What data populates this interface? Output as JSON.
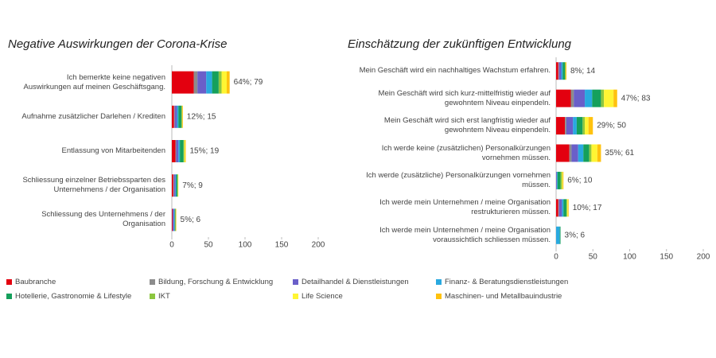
{
  "chart_data": [
    {
      "type": "bar",
      "orientation": "horizontal",
      "title": "Negative Auswirkungen der Corona-Krise",
      "categories": [
        "Ich bemerkte keine negativen\nAuswirkungen auf meinen Geschäftsgang.",
        "Aufnahme zusätzlicher Darlehen / Krediten",
        "Entlassung von Mitarbeitenden",
        "Schliessung einzelner Betriebssparten des\nUnternehmens / der Organisation",
        "Schliessung des Unternehmens / der\nOrganisation"
      ],
      "series": [
        {
          "values": [
            30,
            3,
            5,
            2,
            1
          ]
        },
        {
          "values": [
            5,
            1,
            1,
            1,
            0
          ]
        },
        {
          "values": [
            12,
            3,
            3,
            2,
            2
          ]
        },
        {
          "values": [
            8,
            2,
            2,
            1,
            1
          ]
        },
        {
          "values": [
            9,
            4,
            5,
            2,
            1
          ]
        },
        {
          "values": [
            4,
            1,
            1,
            0,
            0
          ]
        },
        {
          "values": [
            7,
            0,
            1,
            1,
            0
          ]
        },
        {
          "values": [
            4,
            1,
            1,
            0,
            1
          ]
        }
      ],
      "totals": {
        "values": [
          79,
          15,
          19,
          9,
          6
        ],
        "value_labels": [
          "64%; 79",
          "12%; 15",
          "15%; 19",
          "7%; 9",
          "5%; 6"
        ]
      },
      "xlim": [
        0,
        200
      ],
      "xticks": [
        0,
        50,
        100,
        150,
        200
      ]
    },
    {
      "type": "bar",
      "orientation": "horizontal",
      "title": "Einschätzung der zukünftigen Entwicklung",
      "categories": [
        "Mein Geschäft wird ein nachhaltiges Wachstum erfahren.",
        "Mein Geschäft wird sich kurz-mittelfristig wieder auf\ngewohntem Niveau einpendeln.",
        "Mein Geschäft wird sich erst langfristig wieder auf\ngewohntem Niveau einpendeln.",
        "Ich werde keine (zusätzlichen) Personalkürzungen\nvornehmen müssen.",
        "Ich werde (zusätzliche) Personalkürzungen vornehmen\nmüssen.",
        "Ich werde mein Unternehmen / meine Organisation\nrestrukturieren müssen.",
        "Ich werde mein Unternehmen / meine Organisation\nvoraussichtlich schliessen müssen."
      ],
      "series": [
        {
          "values": [
            3,
            20,
            12,
            18,
            0,
            3,
            0
          ]
        },
        {
          "values": [
            1,
            4,
            2,
            3,
            0,
            1,
            0
          ]
        },
        {
          "values": [
            3,
            15,
            9,
            9,
            1,
            4,
            0
          ]
        },
        {
          "values": [
            2,
            10,
            5,
            7,
            1,
            2,
            5
          ]
        },
        {
          "values": [
            3,
            12,
            8,
            8,
            4,
            4,
            1
          ]
        },
        {
          "values": [
            1,
            4,
            3,
            3,
            2,
            1,
            0
          ]
        },
        {
          "values": [
            0,
            13,
            5,
            8,
            1,
            1,
            0
          ]
        },
        {
          "values": [
            1,
            5,
            6,
            5,
            1,
            1,
            0
          ]
        }
      ],
      "totals": {
        "values": [
          14,
          83,
          50,
          61,
          10,
          17,
          6
        ],
        "value_labels": [
          "8%; 14",
          "47%; 83",
          "29%; 50",
          "35%; 61",
          "6%; 10",
          "10%; 17",
          "3%; 6"
        ]
      },
      "xlim": [
        0,
        200
      ],
      "xticks": [
        0,
        50,
        100,
        150,
        200
      ]
    }
  ],
  "legend": [
    {
      "name": "Baubranche",
      "color": "#e3000f"
    },
    {
      "name": "Bildung, Forschung & Entwicklung",
      "color": "#8c8c8c"
    },
    {
      "name": "Detailhandel & Dienstleistungen",
      "color": "#6a5fc9"
    },
    {
      "name": "Finanz- & Beratungsdienstleistungen",
      "color": "#29a9e0"
    },
    {
      "name": "Hotellerie, Gastronomie & Lifestyle",
      "color": "#15a05c"
    },
    {
      "name": "IKT",
      "color": "#8cc63f"
    },
    {
      "name": "Life Science",
      "color": "#fff533"
    },
    {
      "name": "Maschinen- und Metallbauindustrie",
      "color": "#ffc20e"
    }
  ]
}
